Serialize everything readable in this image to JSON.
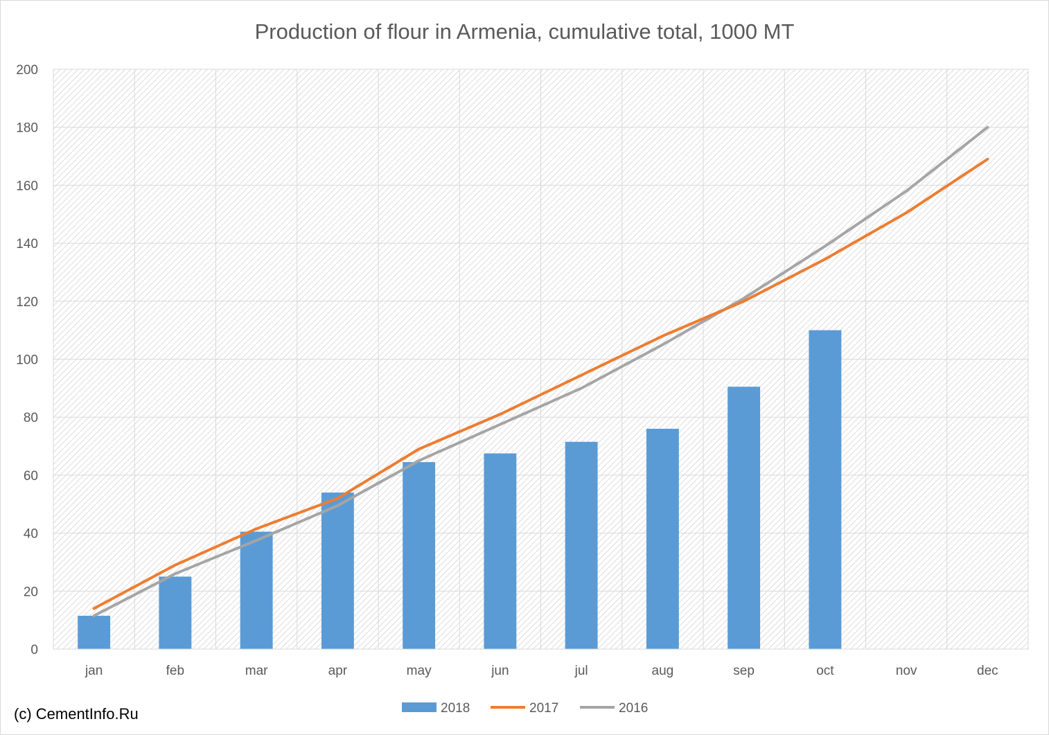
{
  "chart_data": {
    "type": "bar",
    "title": "Production of flour in Armenia, cumulative total, 1000 MT",
    "xlabel": "",
    "ylabel": "",
    "ylim": [
      0,
      200
    ],
    "yticks": [
      0,
      20,
      40,
      60,
      80,
      100,
      120,
      140,
      160,
      180,
      200
    ],
    "grid": true,
    "legend_position": "bottom",
    "categories": [
      "jan",
      "feb",
      "mar",
      "apr",
      "may",
      "jun",
      "jul",
      "aug",
      "sep",
      "oct",
      "nov",
      "dec"
    ],
    "series": [
      {
        "name": "2018",
        "kind": "bar",
        "color": "#5b9bd5",
        "values": [
          11.5,
          25,
          40.5,
          54,
          64.5,
          67.5,
          71.5,
          76,
          90.5,
          110,
          null,
          null
        ]
      },
      {
        "name": "2017",
        "kind": "line",
        "color": "#ed7d31",
        "values": [
          14,
          29,
          41.5,
          52,
          69,
          81,
          94.5,
          108,
          120,
          134.5,
          150.5,
          169
        ]
      },
      {
        "name": "2016",
        "kind": "line",
        "color": "#a5a5a5",
        "values": [
          11.5,
          26,
          37.5,
          49.5,
          65,
          77.5,
          90,
          105,
          121,
          139,
          158,
          180
        ]
      }
    ]
  },
  "credit": "(c) CementInfo.Ru"
}
